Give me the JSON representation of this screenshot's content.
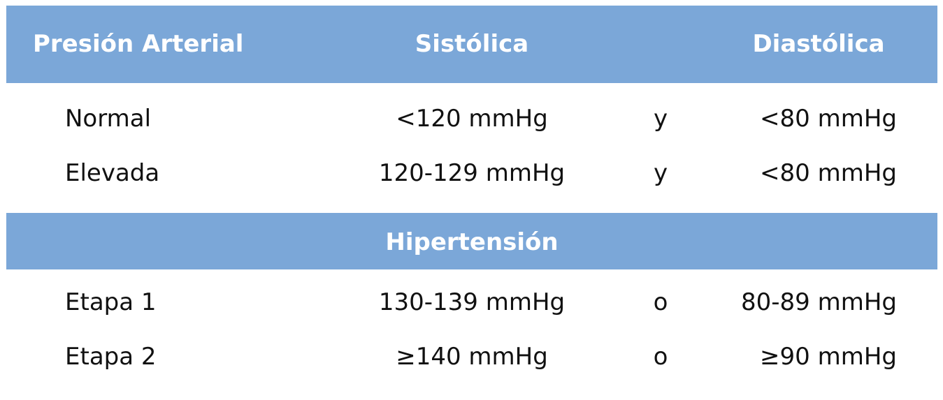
{
  "table": {
    "header": [
      "Presión Arterial",
      "Sistólica",
      "Diastólica"
    ],
    "rows": [
      [
        "Normal",
        "<120 mmHg",
        "y",
        "<80 mmHg"
      ],
      [
        "Elevada",
        "120-129 mmHg",
        "y",
        "<80 mmHg"
      ]
    ],
    "section": "Hipertensión",
    "section_rows": [
      [
        "Etapa 1",
        "130-139 mmHg",
        "o",
        "80-89 mmHg"
      ],
      [
        "Etapa 2",
        "≥140 mmHg",
        "o",
        "≥90 mmHg"
      ]
    ]
  }
}
